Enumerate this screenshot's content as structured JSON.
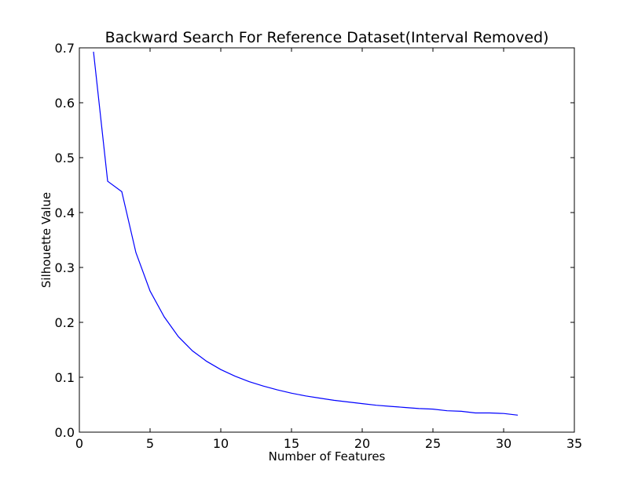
{
  "chart_data": {
    "type": "line",
    "title": "Backward Search For Reference Dataset(Interval Removed)",
    "xlabel": "Number of Features",
    "ylabel": "Silhouette Value",
    "xlim": [
      0,
      35
    ],
    "ylim": [
      0.0,
      0.7
    ],
    "xticks": [
      "0",
      "5",
      "10",
      "15",
      "20",
      "25",
      "30",
      "35"
    ],
    "yticks": [
      "0.0",
      "0.1",
      "0.2",
      "0.3",
      "0.4",
      "0.5",
      "0.6",
      "0.7"
    ],
    "grid": false,
    "line_color": "#0000ff",
    "series": [
      {
        "x": [
          1,
          2,
          3,
          4,
          5,
          6,
          7,
          8,
          9,
          10,
          11,
          12,
          13,
          14,
          15,
          16,
          17,
          18,
          19,
          20,
          21,
          22,
          23,
          24,
          25,
          26,
          27,
          28,
          29,
          30,
          31
        ],
        "values": [
          0.693,
          0.457,
          0.438,
          0.327,
          0.257,
          0.21,
          0.174,
          0.148,
          0.129,
          0.114,
          0.102,
          0.092,
          0.084,
          0.077,
          0.071,
          0.066,
          0.062,
          0.058,
          0.055,
          0.052,
          0.049,
          0.047,
          0.045,
          0.043,
          0.042,
          0.039,
          0.038,
          0.035,
          0.035,
          0.034,
          0.031
        ]
      }
    ]
  }
}
